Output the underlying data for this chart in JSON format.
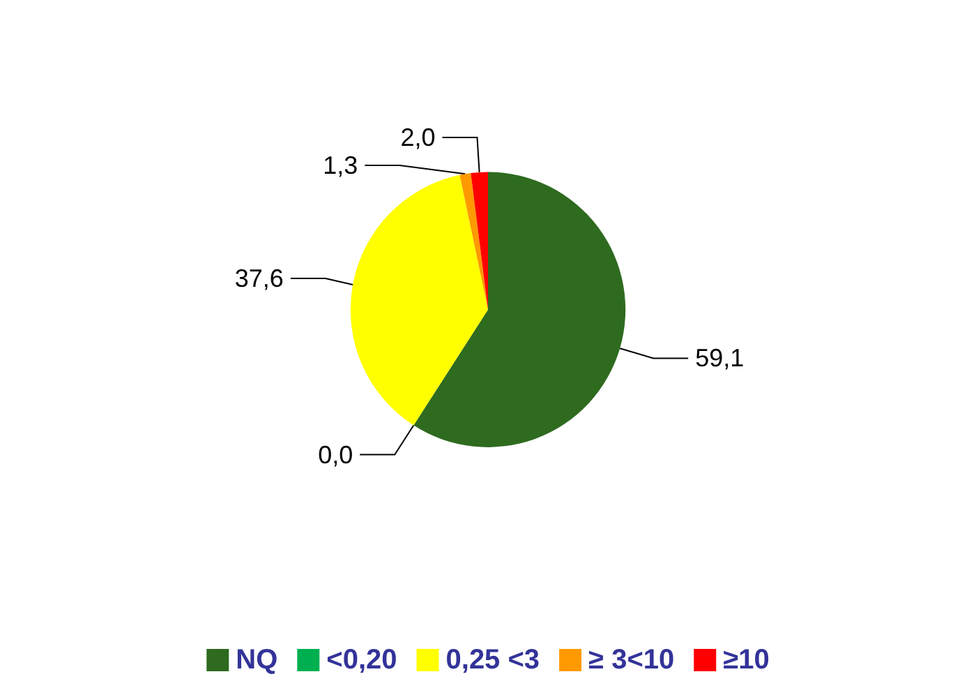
{
  "chart_data": {
    "type": "pie",
    "categories": [
      "NQ",
      "<0,20",
      "0,25 <3",
      "≥ 3<10",
      "≥10"
    ],
    "values": [
      59.1,
      0.0,
      37.6,
      1.3,
      2.0
    ],
    "colors": [
      "#2e6b1f",
      "#00b050",
      "#ffff00",
      "#ff9900",
      "#ff0000"
    ],
    "value_labels": [
      "59,1",
      "0,0",
      "37,6",
      "1,3",
      "2,0"
    ],
    "legend": "bottom"
  }
}
